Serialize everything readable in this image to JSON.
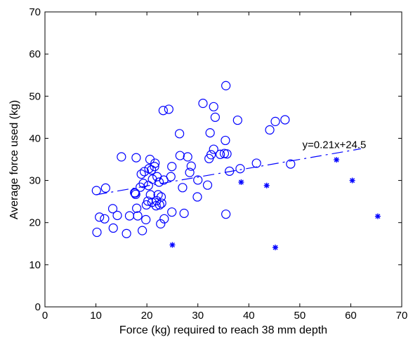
{
  "chart_data": {
    "type": "scatter",
    "xlabel": "Force (kg) required to reach 38 mm depth",
    "ylabel": "Average force used (kg)",
    "xlim": [
      0,
      70
    ],
    "ylim": [
      0,
      70
    ],
    "xticks": [
      0,
      10,
      20,
      30,
      40,
      50,
      60,
      70
    ],
    "yticks": [
      0,
      10,
      20,
      30,
      40,
      50,
      60,
      70
    ],
    "grid": false,
    "colors": {
      "series": "#0000ff",
      "axis": "#000000"
    },
    "annotation": {
      "text": "y=0.21x+24.5",
      "x": 50.5,
      "y": 38.5
    },
    "fit_line": {
      "slope": 0.21,
      "intercept": 24.5,
      "x_range": [
        10,
        62
      ],
      "style": "dash-dot"
    },
    "series": [
      {
        "marker": "circle",
        "points": [
          [
            10.1,
            27.6
          ],
          [
            10.2,
            17.7
          ],
          [
            10.7,
            21.3
          ],
          [
            11.7,
            20.9
          ],
          [
            11.9,
            28.2
          ],
          [
            13.3,
            23.3
          ],
          [
            13.4,
            18.7
          ],
          [
            14.2,
            21.7
          ],
          [
            15.0,
            35.6
          ],
          [
            16.0,
            17.4
          ],
          [
            16.6,
            21.6
          ],
          [
            17.6,
            27.1
          ],
          [
            17.7,
            27.0
          ],
          [
            17.8,
            26.7
          ],
          [
            17.9,
            35.4
          ],
          [
            18.0,
            23.4
          ],
          [
            18.2,
            21.6
          ],
          [
            18.7,
            28.4
          ],
          [
            18.9,
            31.5
          ],
          [
            19.1,
            18.1
          ],
          [
            19.3,
            29.3
          ],
          [
            19.5,
            32.1
          ],
          [
            19.8,
            20.7
          ],
          [
            19.9,
            24.2
          ],
          [
            20.2,
            25.1
          ],
          [
            20.3,
            28.8
          ],
          [
            20.4,
            32.8
          ],
          [
            20.6,
            35.0
          ],
          [
            20.7,
            26.6
          ],
          [
            20.9,
            32.5
          ],
          [
            21.0,
            24.8
          ],
          [
            21.1,
            30.3
          ],
          [
            21.5,
            33.3
          ],
          [
            21.6,
            34.1
          ],
          [
            21.8,
            24.0
          ],
          [
            21.9,
            25.2
          ],
          [
            22.0,
            30.9
          ],
          [
            22.2,
            26.6
          ],
          [
            22.4,
            29.6
          ],
          [
            22.5,
            24.2
          ],
          [
            22.7,
            19.7
          ],
          [
            22.8,
            26.1
          ],
          [
            22.9,
            24.6
          ],
          [
            23.2,
            46.6
          ],
          [
            23.3,
            30.1
          ],
          [
            23.4,
            20.9
          ],
          [
            24.3,
            46.9
          ],
          [
            24.7,
            30.9
          ],
          [
            24.9,
            33.3
          ],
          [
            24.9,
            22.5
          ],
          [
            26.4,
            41.1
          ],
          [
            26.5,
            35.9
          ],
          [
            27.0,
            28.3
          ],
          [
            27.3,
            22.2
          ],
          [
            28.0,
            35.6
          ],
          [
            28.4,
            31.9
          ],
          [
            28.7,
            33.4
          ],
          [
            29.9,
            26.1
          ],
          [
            30.0,
            30.1
          ],
          [
            31.0,
            48.3
          ],
          [
            31.9,
            28.9
          ],
          [
            32.2,
            35.2
          ],
          [
            32.4,
            41.3
          ],
          [
            32.6,
            36.1
          ],
          [
            33.1,
            47.5
          ],
          [
            33.1,
            37.4
          ],
          [
            33.4,
            45.0
          ],
          [
            34.4,
            36.2
          ],
          [
            35.2,
            36.4
          ],
          [
            35.4,
            39.5
          ],
          [
            35.5,
            22.0
          ],
          [
            35.5,
            52.5
          ],
          [
            35.7,
            36.3
          ],
          [
            36.2,
            32.2
          ],
          [
            37.8,
            44.3
          ],
          [
            38.3,
            32.8
          ],
          [
            41.5,
            34.1
          ],
          [
            44.1,
            42.0
          ],
          [
            45.2,
            44.0
          ],
          [
            47.1,
            44.4
          ],
          [
            48.2,
            33.9
          ]
        ]
      },
      {
        "marker": "asterisk",
        "points": [
          [
            25.0,
            14.7
          ],
          [
            38.5,
            29.6
          ],
          [
            43.5,
            28.8
          ],
          [
            45.2,
            14.1
          ],
          [
            57.2,
            34.9
          ],
          [
            60.3,
            30.0
          ],
          [
            65.3,
            21.5
          ]
        ]
      }
    ]
  }
}
